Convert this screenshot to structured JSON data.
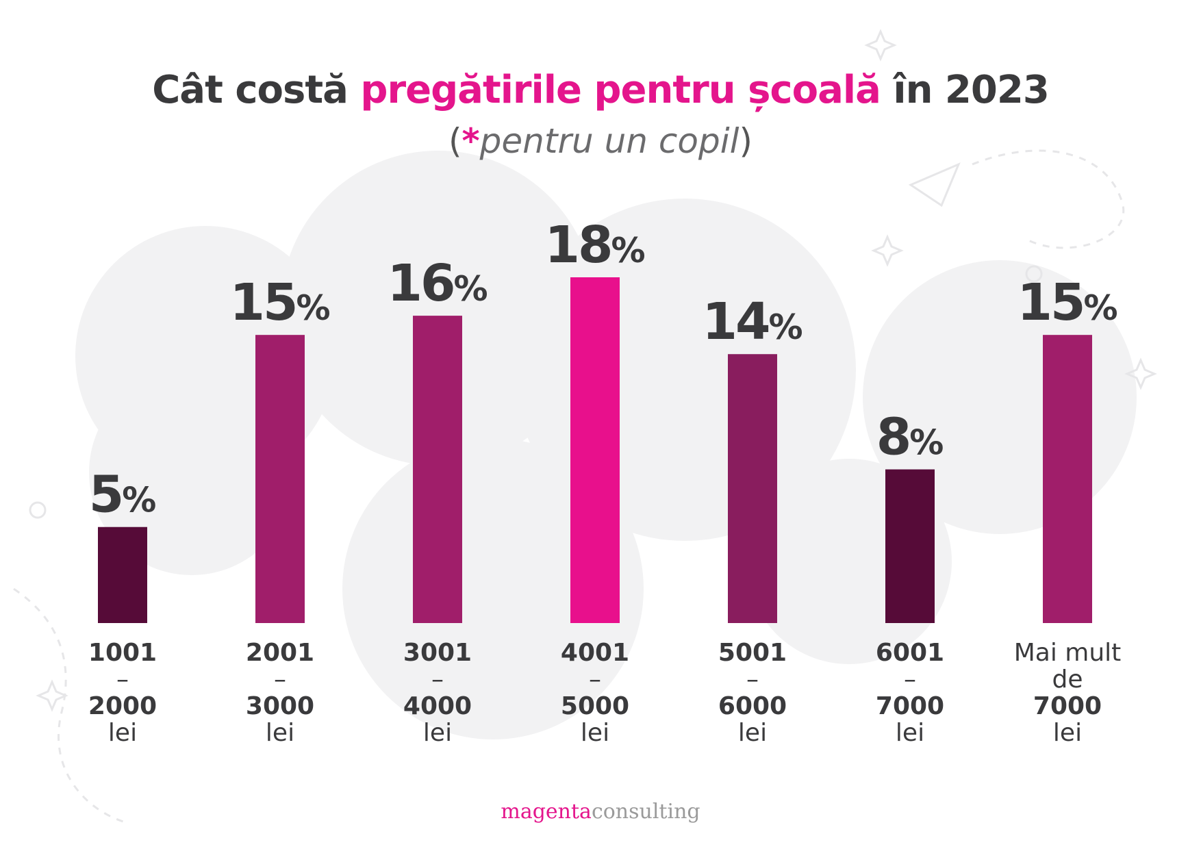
{
  "title": {
    "part1": "Cât costă ",
    "highlight": "pregătirile pentru școală",
    "part2": " în 2023"
  },
  "subtitle": {
    "open": "(",
    "star": "*",
    "text": "pentru un copil",
    "close": ")"
  },
  "footer": {
    "brand_a": "magenta",
    "brand_b": "consulting"
  },
  "colors": {
    "accent": "#e4158c",
    "text": "#3a3a3c"
  },
  "chart_data": {
    "type": "bar",
    "categories": [
      "1001 – 2000 lei",
      "2001 – 3000 lei",
      "3001 – 4000 lei",
      "4001 – 5000 lei",
      "5001 – 6000 lei",
      "6001 – 7000 lei",
      "Mai mult de 7000 lei"
    ],
    "category_lines": [
      [
        "1001",
        "–",
        "2000",
        "lei"
      ],
      [
        "2001",
        "–",
        "3000",
        "lei"
      ],
      [
        "3001",
        "–",
        "4000",
        "lei"
      ],
      [
        "4001",
        "–",
        "5000",
        "lei"
      ],
      [
        "5001",
        "–",
        "6000",
        "lei"
      ],
      [
        "6001",
        "–",
        "7000",
        "lei"
      ],
      [
        "Mai mult",
        "de",
        "7000",
        "lei"
      ]
    ],
    "values": [
      5,
      15,
      16,
      18,
      14,
      8,
      15
    ],
    "value_labels": [
      "5",
      "15",
      "16",
      "18",
      "14",
      "8",
      "15"
    ],
    "unit": "%",
    "bar_colors": [
      "#560b38",
      "#a01e6a",
      "#a01e6a",
      "#e8108c",
      "#891d5e",
      "#560b38",
      "#a01e6a"
    ],
    "ylim": [
      0,
      18
    ],
    "grid": false,
    "legend": "none"
  }
}
